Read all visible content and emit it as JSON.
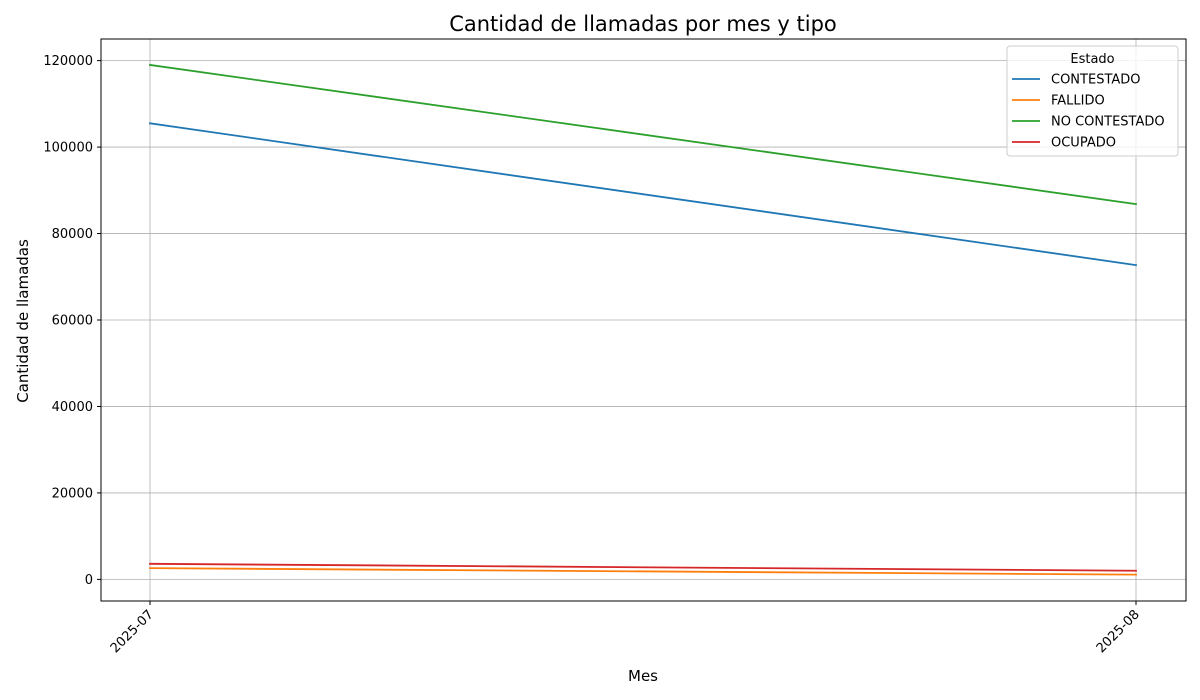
{
  "chart_data": {
    "type": "line",
    "title": "Cantidad de llamadas por mes y tipo",
    "xlabel": "Mes",
    "ylabel": "Cantidad de llamadas",
    "x": [
      "2025-07",
      "2025-08"
    ],
    "x_tick_rotation_deg": 45,
    "ylim": [
      -5000,
      125000
    ],
    "y_ticks": [
      0,
      20000,
      40000,
      60000,
      80000,
      100000,
      120000
    ],
    "y_tick_labels": [
      "0",
      "20000",
      "40000",
      "60000",
      "80000",
      "100000",
      "120000"
    ],
    "grid": true,
    "legend": {
      "title": "Estado",
      "placement": "top-right"
    },
    "series": [
      {
        "name": "CONTESTADO",
        "color": "#1f77b4",
        "values": [
          105500,
          72700
        ]
      },
      {
        "name": "FALLIDO",
        "color": "#ff7f0e",
        "values": [
          2600,
          1100
        ]
      },
      {
        "name": "NO CONTESTADO",
        "color": "#2ca02c",
        "values": [
          119000,
          86800
        ]
      },
      {
        "name": "OCUPADO",
        "color": "#d62728",
        "values": [
          3600,
          2000
        ]
      }
    ]
  }
}
